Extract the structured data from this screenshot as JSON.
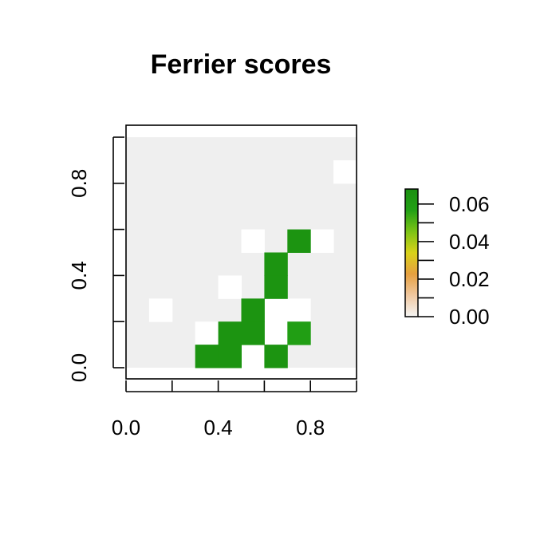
{
  "chart_data": {
    "type": "heatmap",
    "title": "Ferrier scores",
    "xlabel": "",
    "ylabel": "",
    "xlim": [
      0,
      1
    ],
    "ylim": [
      0,
      1
    ],
    "x_ticks": [
      "0.0",
      "0.4",
      "0.8"
    ],
    "y_ticks": [
      "0.0",
      "0.4",
      "0.8"
    ],
    "grid_size": [
      10,
      10
    ],
    "cell_width": 0.1,
    "cell_height": 0.1,
    "background_value_color": "#EFEFEF",
    "empty_cell_color": "#FFFFFF",
    "colorbar": {
      "range": [
        0,
        0.068
      ],
      "tick_labels": [
        "0.00",
        "0.02",
        "0.04",
        "0.06"
      ],
      "tick_values": [
        0,
        0.02,
        0.04,
        0.06
      ],
      "colors_low_to_high": [
        "#F5F5F5",
        "#F0C8A0",
        "#E6A040",
        "#D9D21A",
        "#7CC316",
        "#22A015",
        "#1A8F10"
      ]
    },
    "cells": [
      {
        "col": 3,
        "row": 0,
        "value": 0.065
      },
      {
        "col": 4,
        "row": 0,
        "value": 0.065
      },
      {
        "col": 6,
        "row": 0,
        "value": 0.065
      },
      {
        "col": 4,
        "row": 1,
        "value": 0.065
      },
      {
        "col": 5,
        "row": 1,
        "value": 0.065
      },
      {
        "col": 7,
        "row": 1,
        "value": 0.058
      },
      {
        "col": 5,
        "row": 2,
        "value": 0.065
      },
      {
        "col": 6,
        "row": 3,
        "value": 0.065
      },
      {
        "col": 6,
        "row": 4,
        "value": 0.065
      },
      {
        "col": 7,
        "row": 5,
        "value": 0.065
      }
    ],
    "empty_cells": [
      {
        "col": 5,
        "row": 0
      },
      {
        "col": 3,
        "row": 1
      },
      {
        "col": 6,
        "row": 1
      },
      {
        "col": 1,
        "row": 2
      },
      {
        "col": 6,
        "row": 2
      },
      {
        "col": 7,
        "row": 2
      },
      {
        "col": 4,
        "row": 3
      },
      {
        "col": 5,
        "row": 5
      },
      {
        "col": 8,
        "row": 5
      },
      {
        "col": 9,
        "row": 8
      }
    ]
  }
}
